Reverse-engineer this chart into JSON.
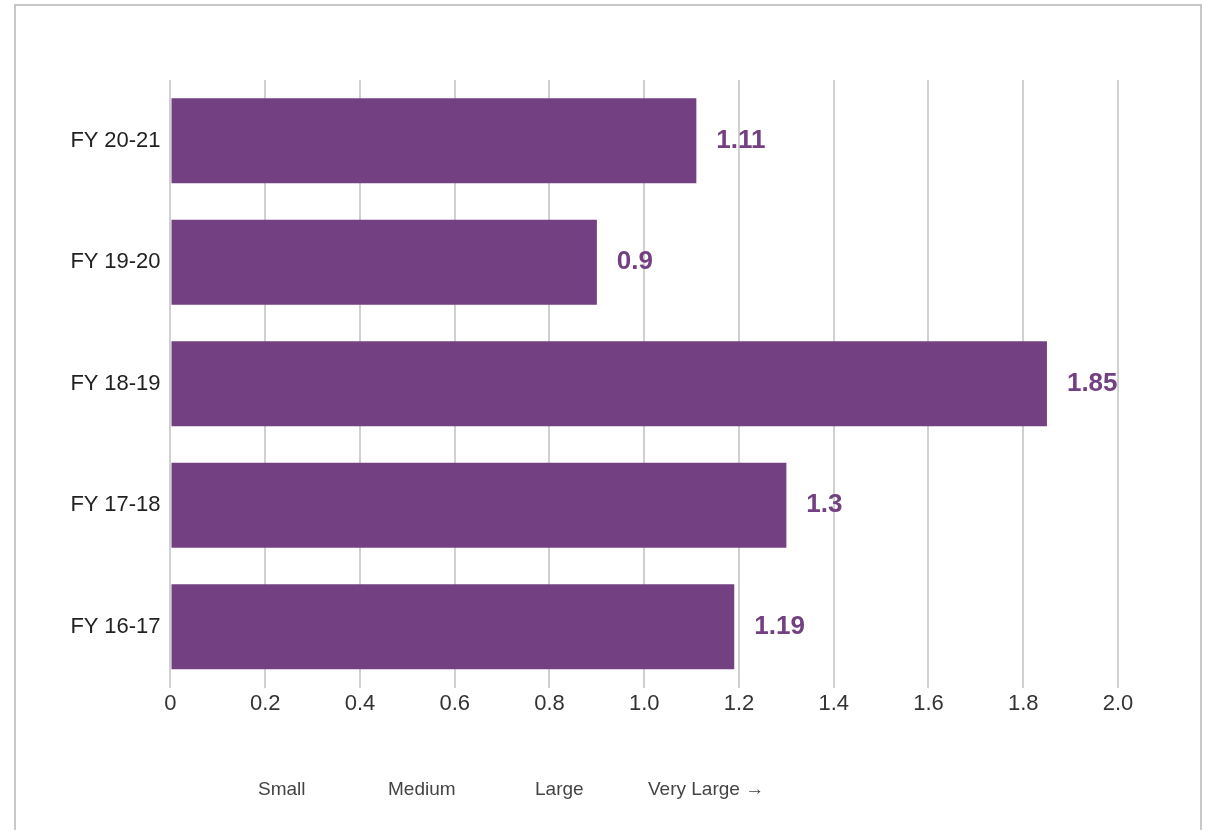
{
  "chart_data": {
    "type": "bar",
    "orientation": "horizontal",
    "categories": [
      "FY 20-21",
      "FY 19-20",
      "FY 18-19",
      "FY 17-18",
      "FY 16-17"
    ],
    "values": [
      1.11,
      0.9,
      1.85,
      1.3,
      1.19
    ],
    "color": "#734182",
    "xlim": [
      0,
      2.0
    ],
    "xticks": [
      0,
      0.2,
      0.4,
      0.6,
      0.8,
      {
        "value": 1.0,
        "label": "1.0"
      },
      1.2,
      1.4,
      1.6,
      1.8,
      {
        "value": 2.0,
        "label": "2.0"
      }
    ],
    "grid": "x",
    "data_labels": true,
    "annotations": [
      "Small",
      "Medium",
      "Large",
      "Very Large →"
    ]
  }
}
